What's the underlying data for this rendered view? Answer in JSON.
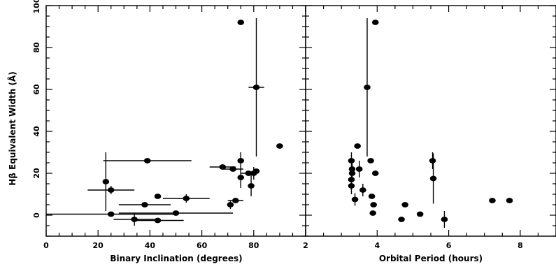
{
  "chart_data": [
    {
      "type": "scatter",
      "panel": "left",
      "xlabel": "Binary Inclination (degrees)",
      "ylabel": "Hβ Equivalent Width (Å)",
      "xlim": [
        0,
        100
      ],
      "ylim": [
        -10,
        100
      ],
      "xticks": [
        0,
        20,
        40,
        60,
        80
      ],
      "yticks": [
        0,
        20,
        40,
        60,
        80,
        100
      ],
      "grid": false,
      "points": [
        {
          "x": 75,
          "y": 92,
          "xerr": 0,
          "yerr": 0
        },
        {
          "x": 81,
          "y": 61,
          "xerr": 3,
          "yerr": 33
        },
        {
          "x": 90,
          "y": 33,
          "xerr": 0,
          "yerr": 0
        },
        {
          "x": 39,
          "y": 26,
          "xerr": 17,
          "yerr": 0
        },
        {
          "x": 75,
          "y": 26,
          "xerr": 0,
          "yerr": 4
        },
        {
          "x": 68,
          "y": 23,
          "xerr": 5,
          "yerr": 0
        },
        {
          "x": 72,
          "y": 22,
          "xerr": 4,
          "yerr": 0
        },
        {
          "x": 81,
          "y": 21,
          "xerr": 0,
          "yerr": 0
        },
        {
          "x": 78,
          "y": 20,
          "xerr": 3,
          "yerr": 0
        },
        {
          "x": 80,
          "y": 20,
          "xerr": 0,
          "yerr": 3
        },
        {
          "x": 75,
          "y": 18,
          "xerr": 0,
          "yerr": 5
        },
        {
          "x": 23,
          "y": 16,
          "xerr": 0,
          "yerr": 14
        },
        {
          "x": 79,
          "y": 14,
          "xerr": 0,
          "yerr": 5
        },
        {
          "x": 25,
          "y": 12,
          "xerr": 9,
          "yerr": 2
        },
        {
          "x": 43,
          "y": 9,
          "xerr": 0,
          "yerr": 0
        },
        {
          "x": 54,
          "y": 8,
          "xerr": 9,
          "yerr": 2
        },
        {
          "x": 73,
          "y": 7,
          "xerr": 3,
          "yerr": 0
        },
        {
          "x": 71,
          "y": 5,
          "xerr": 0,
          "yerr": 2
        },
        {
          "x": 38,
          "y": 5,
          "xerr": 10,
          "yerr": 0
        },
        {
          "x": 25,
          "y": 0.5,
          "xerr": 25,
          "yerr": 0
        },
        {
          "x": 50,
          "y": 1,
          "xerr": 22,
          "yerr": 0
        },
        {
          "x": 34,
          "y": -2,
          "xerr": 8,
          "yerr": 3
        },
        {
          "x": 43,
          "y": -2.5,
          "xerr": 10,
          "yerr": 0
        }
      ]
    },
    {
      "type": "scatter",
      "panel": "right",
      "xlabel": "Orbital Period (hours)",
      "ylabel": "",
      "xlim": [
        2,
        9
      ],
      "ylim": [
        -10,
        100
      ],
      "xticks": [
        2,
        4,
        6,
        8
      ],
      "yticks": [
        0,
        20,
        40,
        60,
        80,
        100
      ],
      "grid": false,
      "points": [
        {
          "x": 3.95,
          "y": 92,
          "xerr": 0,
          "yerr": 0
        },
        {
          "x": 3.72,
          "y": 61,
          "xerr": 0,
          "yerr": 33
        },
        {
          "x": 3.45,
          "y": 33,
          "xerr": 0,
          "yerr": 0
        },
        {
          "x": 3.28,
          "y": 26,
          "xerr": 0,
          "yerr": 4
        },
        {
          "x": 3.82,
          "y": 26,
          "xerr": 0,
          "yerr": 0
        },
        {
          "x": 3.5,
          "y": 22,
          "xerr": 0,
          "yerr": 4
        },
        {
          "x": 3.3,
          "y": 22,
          "xerr": 0,
          "yerr": 5
        },
        {
          "x": 3.3,
          "y": 20,
          "xerr": 0,
          "yerr": 4
        },
        {
          "x": 3.95,
          "y": 20,
          "xerr": 0,
          "yerr": 0
        },
        {
          "x": 3.28,
          "y": 17,
          "xerr": 0,
          "yerr": 5
        },
        {
          "x": 3.28,
          "y": 14,
          "xerr": 0,
          "yerr": 4
        },
        {
          "x": 3.6,
          "y": 12,
          "xerr": 0,
          "yerr": 3
        },
        {
          "x": 3.85,
          "y": 9,
          "xerr": 0,
          "yerr": 0
        },
        {
          "x": 3.38,
          "y": 7.5,
          "xerr": 0,
          "yerr": 3
        },
        {
          "x": 3.9,
          "y": 5,
          "xerr": 0,
          "yerr": 0
        },
        {
          "x": 3.88,
          "y": 1,
          "xerr": 0,
          "yerr": 0
        },
        {
          "x": 4.78,
          "y": 5,
          "xerr": 0,
          "yerr": 0
        },
        {
          "x": 5.2,
          "y": 0.5,
          "xerr": 0,
          "yerr": 0
        },
        {
          "x": 4.68,
          "y": -2,
          "xerr": 0,
          "yerr": 0
        },
        {
          "x": 5.88,
          "y": -2,
          "xerr": 0,
          "yerr": 4
        },
        {
          "x": 5.55,
          "y": 26,
          "xerr": 0,
          "yerr": 4
        },
        {
          "x": 5.57,
          "y": 17.5,
          "xerr": 0,
          "yerr": 12
        },
        {
          "x": 7.22,
          "y": 7,
          "xerr": 0,
          "yerr": 0
        },
        {
          "x": 7.7,
          "y": 7,
          "xerr": 0,
          "yerr": 0
        }
      ]
    }
  ]
}
